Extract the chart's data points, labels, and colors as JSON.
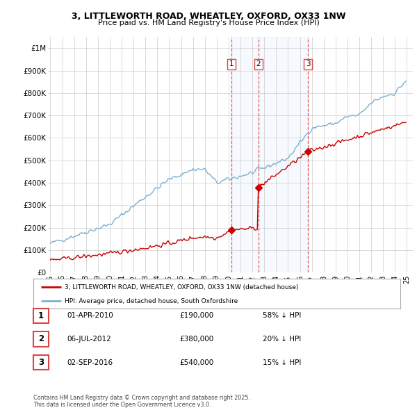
{
  "title": "3, LITTLEWORTH ROAD, WHEATLEY, OXFORD, OX33 1NW",
  "subtitle": "Price paid vs. HM Land Registry's House Price Index (HPI)",
  "legend_label_red": "3, LITTLEWORTH ROAD, WHEATLEY, OXFORD, OX33 1NW (detached house)",
  "legend_label_blue": "HPI: Average price, detached house, South Oxfordshire",
  "footer": "Contains HM Land Registry data © Crown copyright and database right 2025.\nThis data is licensed under the Open Government Licence v3.0.",
  "sales": [
    {
      "num": 1,
      "date": "01-APR-2010",
      "price": 190000,
      "pct": "58% ↓ HPI",
      "date_x": 2010.25
    },
    {
      "num": 2,
      "date": "06-JUL-2012",
      "price": 380000,
      "pct": "20% ↓ HPI",
      "date_x": 2012.5
    },
    {
      "num": 3,
      "date": "02-SEP-2016",
      "price": 540000,
      "pct": "15% ↓ HPI",
      "date_x": 2016.67
    }
  ],
  "ylim": [
    0,
    1050000
  ],
  "xlim_start": 1994.8,
  "xlim_end": 2025.5,
  "yticks": [
    0,
    100000,
    200000,
    300000,
    400000,
    500000,
    600000,
    700000,
    800000,
    900000,
    1000000
  ],
  "ytick_labels": [
    "£0",
    "£100K",
    "£200K",
    "£300K",
    "£400K",
    "£500K",
    "£600K",
    "£700K",
    "£800K",
    "£900K",
    "£1M"
  ],
  "xtick_years": [
    1995,
    1996,
    1997,
    1998,
    1999,
    2000,
    2001,
    2002,
    2003,
    2004,
    2005,
    2006,
    2007,
    2008,
    2009,
    2010,
    2011,
    2012,
    2013,
    2014,
    2015,
    2016,
    2017,
    2018,
    2019,
    2020,
    2021,
    2022,
    2023,
    2024,
    2025
  ],
  "red_color": "#cc0000",
  "blue_color": "#7ab0d4",
  "shade_color": "#ddeeff",
  "vline_color": "#dd4444",
  "grid_color": "#cccccc",
  "bg_color": "#ffffff"
}
